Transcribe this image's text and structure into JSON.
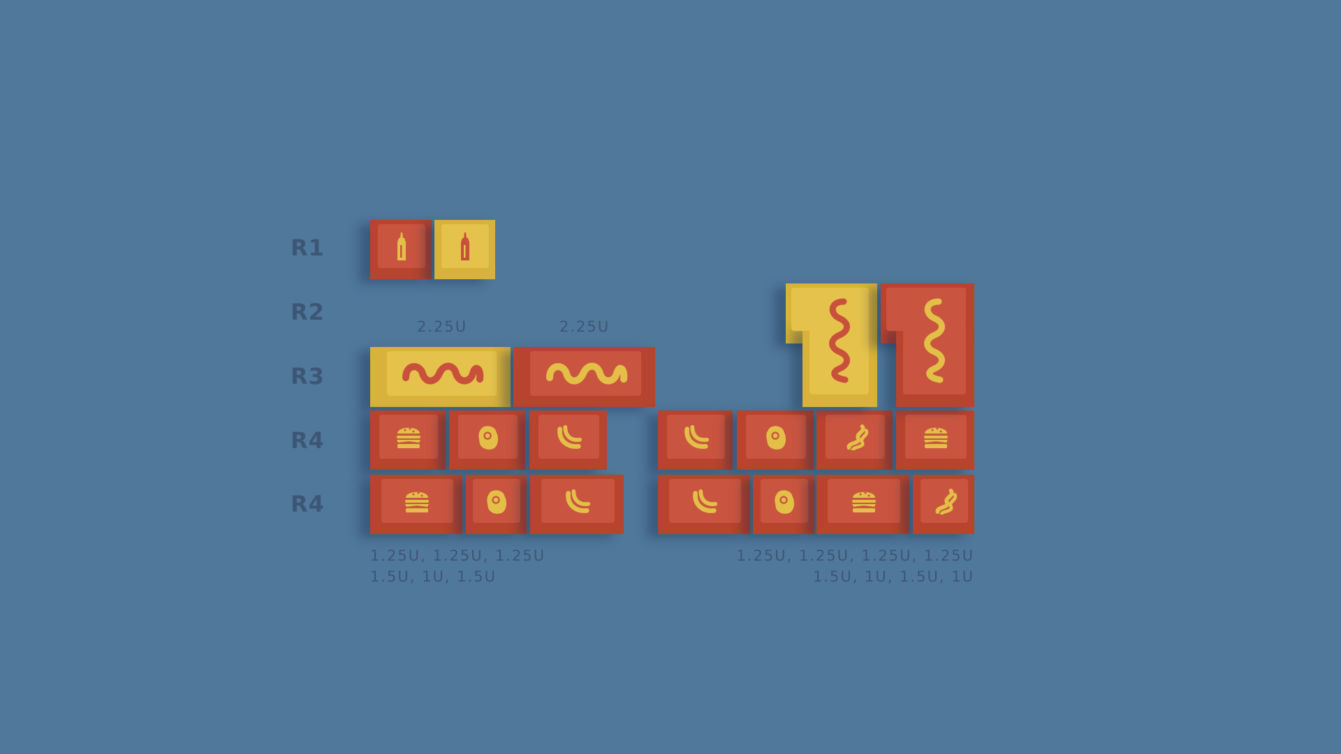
{
  "colors": {
    "background": "#50789b",
    "red": "#c95540",
    "yellow": "#e4c24c",
    "label_text": "#3d5675"
  },
  "row_labels": [
    "R1",
    "R2",
    "R3",
    "R4",
    "R4"
  ],
  "size_labels": {
    "r3_left": "2.25U",
    "r3_right": "2.25U"
  },
  "notes": {
    "left_line1": "1.25U, 1.25U, 1.25U",
    "left_line2": "1.5U, 1U, 1.5U",
    "right_line1": "1.25U, 1.25U, 1.25U, 1.25U",
    "right_line2": "1.5U, 1U, 1.5U, 1U"
  },
  "keys": {
    "r1": [
      {
        "color": "red",
        "icon": "bottle-icon"
      },
      {
        "color": "yellow",
        "icon": "bottle-icon"
      }
    ],
    "r3": [
      {
        "color": "yellow",
        "icon": "wave-icon"
      },
      {
        "color": "red",
        "icon": "wave-icon"
      }
    ],
    "iso": [
      {
        "color": "yellow",
        "icon": "wave-vertical-icon"
      },
      {
        "color": "red",
        "icon": "wave-vertical-icon"
      }
    ],
    "r4a_left": [
      {
        "color": "red",
        "icon": "burger-icon"
      },
      {
        "color": "red",
        "icon": "egg-icon"
      },
      {
        "color": "red",
        "icon": "hotdog-icon"
      }
    ],
    "r4a_right": [
      {
        "color": "red",
        "icon": "hotdog-icon"
      },
      {
        "color": "red",
        "icon": "egg-icon"
      },
      {
        "color": "red",
        "icon": "bacon-icon"
      },
      {
        "color": "red",
        "icon": "burger-icon"
      }
    ],
    "r4b_left": [
      {
        "color": "red",
        "icon": "burger-icon"
      },
      {
        "color": "red",
        "icon": "egg-icon"
      },
      {
        "color": "red",
        "icon": "hotdog-icon"
      }
    ],
    "r4b_right": [
      {
        "color": "red",
        "icon": "hotdog-icon"
      },
      {
        "color": "red",
        "icon": "egg-icon"
      },
      {
        "color": "red",
        "icon": "burger-icon"
      },
      {
        "color": "red",
        "icon": "bacon-icon"
      }
    ]
  }
}
